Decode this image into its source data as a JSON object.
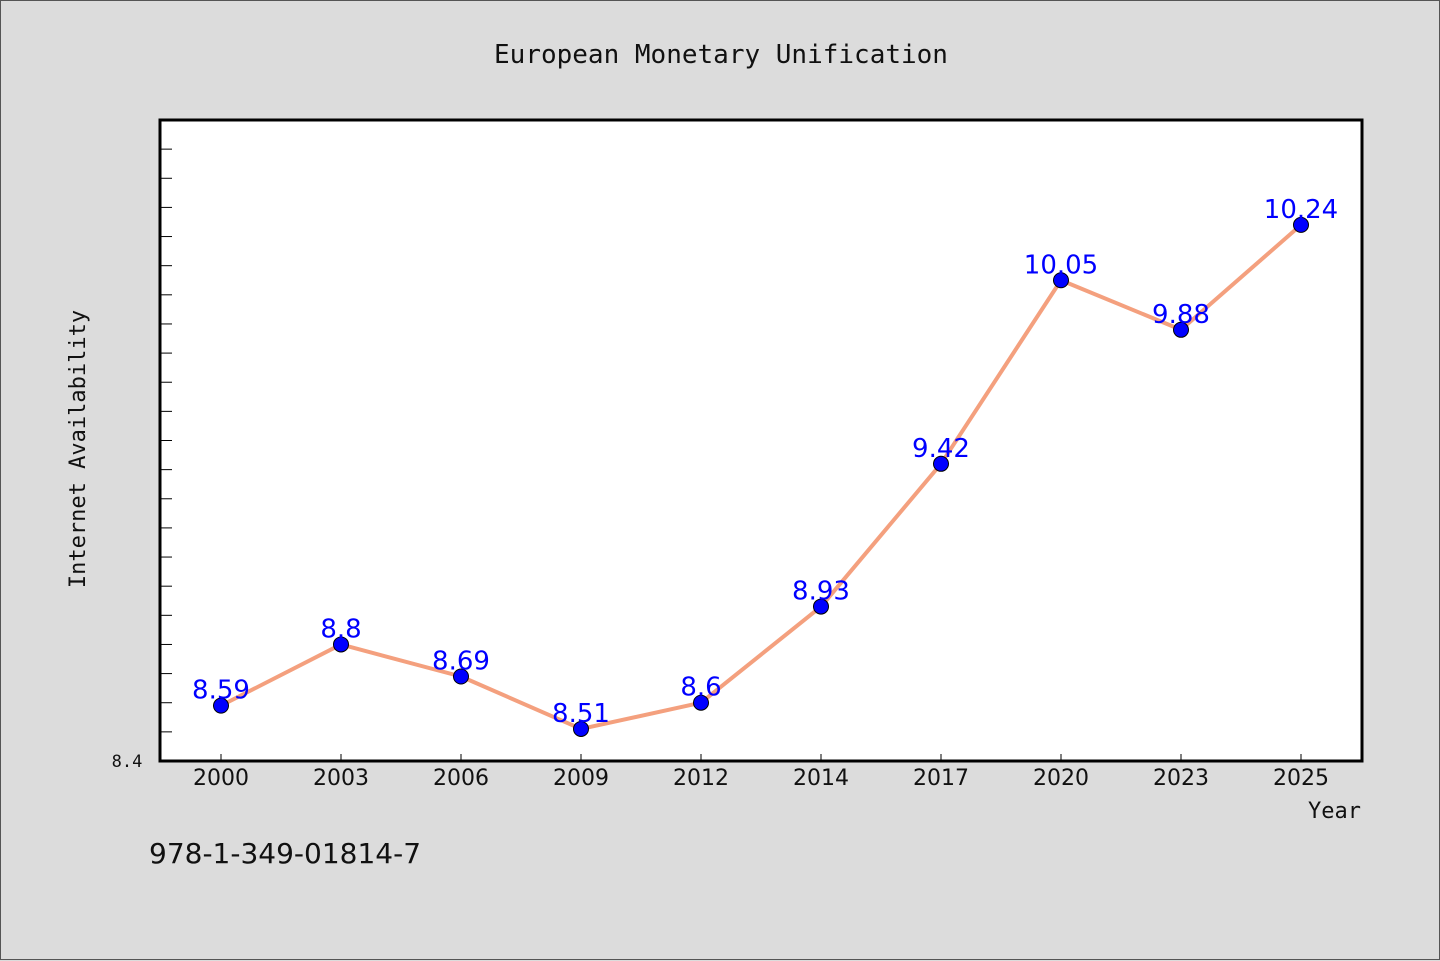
{
  "chart_data": {
    "type": "line",
    "title": "European Monetary Unification",
    "xlabel": "Year",
    "ylabel": "Internet Availability",
    "categories": [
      "2000",
      "2003",
      "2006",
      "2009",
      "2012",
      "2014",
      "2017",
      "2020",
      "2023",
      "2025"
    ],
    "series": [
      {
        "values": [
          8.59,
          8.8,
          8.69,
          8.51,
          8.6,
          8.93,
          9.42,
          10.05,
          9.88,
          10.24
        ]
      }
    ],
    "data_labels": [
      "8.59",
      "8.8",
      "8.69",
      "8.51",
      "8.6",
      "8.93",
      "9.42",
      "10.05",
      "9.88",
      "10.24"
    ],
    "y_tick_labels": [
      "8.4"
    ],
    "ylim": [
      8.4,
      10.6
    ],
    "grid": false,
    "legend": "none",
    "colors": {
      "line": "#f4a07e",
      "marker": "#0000ff",
      "data_label": "#0000ff",
      "plot_background": "#ffffff",
      "figure_background": "#dcdcdc"
    }
  },
  "footer_text": "978-1-349-01814-7"
}
